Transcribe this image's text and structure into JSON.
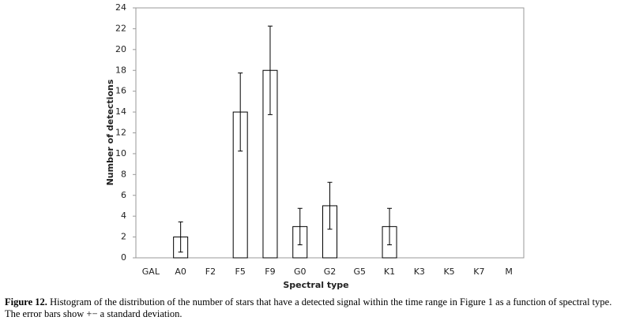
{
  "chart_data": {
    "type": "bar",
    "categories": [
      "GAL",
      "A0",
      "F2",
      "F5",
      "F9",
      "G0",
      "G2",
      "G5",
      "K1",
      "K3",
      "K5",
      "K7",
      "M"
    ],
    "values": [
      0,
      2,
      0,
      14,
      18,
      3,
      5,
      0,
      3,
      0,
      0,
      0,
      0
    ],
    "errors": [
      null,
      1.45,
      null,
      3.75,
      4.25,
      1.75,
      2.25,
      null,
      1.75,
      null,
      null,
      null,
      null
    ],
    "color": "#ffffff",
    "ylim": [
      0,
      24
    ],
    "yticks": [
      0,
      2,
      4,
      6,
      8,
      10,
      12,
      14,
      16,
      18,
      20,
      22,
      24
    ],
    "ylabel": "Number of detections",
    "xlabel": "Spectral type",
    "caption_label": "Figure 12.",
    "caption_text": "Histogram of the distribution of the number of stars that have a detected signal within the time range in Figure 1 as a function of spectral type. The error bars show +− a standard deviation."
  }
}
